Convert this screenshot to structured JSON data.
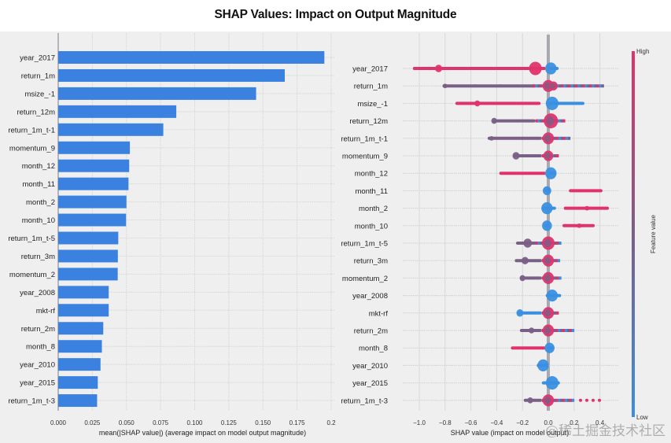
{
  "title": "SHAP Values: Impact on Output Magnitude",
  "watermark": "@稀土掘金技术社区",
  "colors": {
    "bar": "#3b82e0",
    "high": "#e0336c",
    "low": "#3a8fe0",
    "mid": "#7a5f86",
    "grid": "#d8d8d8",
    "panel_bg": "#efefef",
    "zero_line": "#a9a9b0"
  },
  "chart_data": [
    {
      "type": "bar",
      "orientation": "horizontal",
      "title": "",
      "xlabel": "mean(|SHAP value|) (average impact on model output magnitude)",
      "ylabel": "",
      "xlim": [
        0.0,
        0.2
      ],
      "xticks": [
        "0.000",
        "0.025",
        "0.050",
        "0.075",
        "0.100",
        "0.125",
        "0.150",
        "0.175",
        "0.2"
      ],
      "xtick_values": [
        0.0,
        0.025,
        0.05,
        0.075,
        0.1,
        0.125,
        0.15,
        0.175,
        0.2
      ],
      "grid": true,
      "categories": [
        "year_2017",
        "return_1m",
        "msize_-1",
        "return_12m",
        "return_1m_t-1",
        "momentum_9",
        "month_12",
        "month_11",
        "month_2",
        "month_10",
        "return_1m_t-5",
        "return_3m",
        "momentum_2",
        "year_2008",
        "mkt-rf",
        "return_2m",
        "month_8",
        "year_2010",
        "year_2015",
        "return_1m_t-3"
      ],
      "values": [
        0.195,
        0.166,
        0.145,
        0.0865,
        0.077,
        0.0525,
        0.052,
        0.0515,
        0.05,
        0.0497,
        0.044,
        0.0437,
        0.0436,
        0.037,
        0.037,
        0.033,
        0.032,
        0.031,
        0.029,
        0.0285
      ]
    },
    {
      "type": "scatter",
      "subtype": "beeswarm",
      "title": "",
      "xlabel": "SHAP value (impact on model output)",
      "ylabel": "",
      "xlim": [
        -1.1,
        0.6
      ],
      "xticks": [
        "−1.0",
        "−0.8",
        "−0.6",
        "−0.4",
        "−0.2",
        "0.0",
        "0.2",
        "0.4"
      ],
      "xtick_values": [
        -1.0,
        -0.8,
        -0.6,
        -0.4,
        -0.2,
        0.0,
        0.2,
        0.4
      ],
      "grid": true,
      "colorbar": {
        "label": "Feature value",
        "high_label": "High",
        "low_label": "Low",
        "placement": "right"
      },
      "features": [
        {
          "name": "year_2017",
          "segments": [
            {
              "from": -1.05,
              "to": -0.02,
              "color": "high",
              "clusters": [
                [
                  -0.85,
                  5
                ],
                [
                  -0.1,
                  9
                ]
              ]
            },
            {
              "from": 0.0,
              "to": 0.08,
              "color": "low",
              "clusters": [
                [
                  0.02,
                  8
                ]
              ]
            }
          ]
        },
        {
          "name": "return_1m",
          "segments": [
            {
              "from": -0.82,
              "to": -0.1,
              "color": "mid",
              "clusters": [
                [
                  -0.8,
                  3
                ],
                [
                  -0.57,
                  2
                ],
                [
                  -0.37,
                  2
                ]
              ]
            },
            {
              "from": -0.12,
              "to": 0.43,
              "color": "mixed",
              "clusters": [
                [
                  0.0,
                  8
                ],
                [
                  0.04,
                  6
                ]
              ]
            }
          ]
        },
        {
          "name": "msize_-1",
          "segments": [
            {
              "from": -0.72,
              "to": -0.06,
              "color": "high",
              "clusters": [
                [
                  -0.55,
                  4
                ],
                [
                  -0.2,
                  2
                ]
              ]
            },
            {
              "from": 0.0,
              "to": 0.28,
              "color": "low",
              "clusters": [
                [
                  0.03,
                  9
                ]
              ]
            }
          ]
        },
        {
          "name": "return_12m",
          "segments": [
            {
              "from": -0.43,
              "to": -0.1,
              "color": "mid",
              "clusters": [
                [
                  -0.42,
                  4
                ],
                [
                  -0.2,
                  2
                ]
              ]
            },
            {
              "from": -0.1,
              "to": 0.13,
              "color": "mixed",
              "clusters": [
                [
                  0.02,
                  10
                ]
              ]
            }
          ]
        },
        {
          "name": "return_1m_t-1",
          "segments": [
            {
              "from": -0.47,
              "to": -0.05,
              "color": "mid",
              "clusters": [
                [
                  -0.44,
                  3
                ],
                [
                  -0.2,
                  2
                ]
              ]
            },
            {
              "from": -0.05,
              "to": 0.17,
              "color": "mixed",
              "clusters": [
                [
                  0.0,
                  8
                ]
              ]
            }
          ]
        },
        {
          "name": "momentum_9",
          "segments": [
            {
              "from": -0.27,
              "to": -0.05,
              "color": "mid",
              "clusters": [
                [
                  -0.25,
                  5
                ]
              ]
            },
            {
              "from": -0.05,
              "to": 0.08,
              "color": "mixed",
              "clusters": [
                [
                  0.0,
                  7
                ]
              ]
            }
          ]
        },
        {
          "name": "month_12",
          "segments": [
            {
              "from": -0.38,
              "to": -0.02,
              "color": "high",
              "clusters": [
                [
                  -0.3,
                  1
                ]
              ]
            },
            {
              "from": 0.0,
              "to": 0.06,
              "color": "low",
              "clusters": [
                [
                  0.02,
                  8
                ]
              ]
            }
          ]
        },
        {
          "name": "month_11",
          "segments": [
            {
              "from": -0.03,
              "to": 0.01,
              "color": "low",
              "clusters": [
                [
                  -0.01,
                  6
                ]
              ]
            },
            {
              "from": 0.16,
              "to": 0.42,
              "color": "high",
              "clusters": [
                [
                  0.25,
                  2
                ]
              ]
            }
          ]
        },
        {
          "name": "month_2",
          "segments": [
            {
              "from": -0.05,
              "to": 0.06,
              "color": "low",
              "clusters": [
                [
                  -0.01,
                  8
                ]
              ]
            },
            {
              "from": 0.12,
              "to": 0.47,
              "color": "high",
              "clusters": [
                [
                  0.3,
                  3
                ]
              ]
            }
          ]
        },
        {
          "name": "month_10",
          "segments": [
            {
              "from": -0.03,
              "to": 0.01,
              "color": "low",
              "clusters": [
                [
                  -0.01,
                  7
                ]
              ]
            },
            {
              "from": 0.11,
              "to": 0.36,
              "color": "high",
              "clusters": [
                [
                  0.24,
                  3
                ]
              ]
            }
          ]
        },
        {
          "name": "return_1m_t-5",
          "segments": [
            {
              "from": -0.25,
              "to": -0.05,
              "color": "mid",
              "clusters": [
                [
                  -0.16,
                  6
                ]
              ]
            },
            {
              "from": -0.1,
              "to": 0.1,
              "color": "mixed",
              "clusters": [
                [
                  0.0,
                  9
                ]
              ]
            }
          ]
        },
        {
          "name": "return_3m",
          "segments": [
            {
              "from": -0.26,
              "to": -0.05,
              "color": "mid",
              "clusters": [
                [
                  -0.18,
                  5
                ]
              ]
            },
            {
              "from": -0.05,
              "to": 0.09,
              "color": "mixed",
              "clusters": [
                [
                  0.0,
                  8
                ]
              ]
            }
          ]
        },
        {
          "name": "momentum_2",
          "segments": [
            {
              "from": -0.22,
              "to": -0.05,
              "color": "mid",
              "clusters": [
                [
                  -0.2,
                  4
                ]
              ]
            },
            {
              "from": -0.05,
              "to": 0.1,
              "color": "mixed",
              "clusters": [
                [
                  0.0,
                  8
                ]
              ]
            }
          ]
        },
        {
          "name": "year_2008",
          "segments": [
            {
              "from": -0.02,
              "to": 0.1,
              "color": "low",
              "clusters": [
                [
                  0.03,
                  8
                ]
              ]
            }
          ]
        },
        {
          "name": "mkt-rf",
          "segments": [
            {
              "from": -0.24,
              "to": -0.05,
              "color": "low",
              "clusters": [
                [
                  -0.22,
                  5
                ]
              ]
            },
            {
              "from": -0.05,
              "to": 0.08,
              "color": "mixed",
              "clusters": [
                [
                  0.0,
                  8
                ]
              ]
            }
          ]
        },
        {
          "name": "return_2m",
          "segments": [
            {
              "from": -0.22,
              "to": -0.05,
              "color": "mid",
              "clusters": [
                [
                  -0.13,
                  4
                ]
              ]
            },
            {
              "from": -0.05,
              "to": 0.2,
              "color": "mixed",
              "clusters": [
                [
                  0.0,
                  8
                ]
              ]
            }
          ]
        },
        {
          "name": "month_8",
          "segments": [
            {
              "from": -0.29,
              "to": -0.02,
              "color": "high",
              "clusters": []
            },
            {
              "from": -0.01,
              "to": 0.04,
              "color": "low",
              "clusters": [
                [
                  0.01,
                  7
                ]
              ]
            }
          ]
        },
        {
          "name": "year_2010",
          "segments": [
            {
              "from": -0.09,
              "to": 0.0,
              "color": "low",
              "clusters": [
                [
                  -0.04,
                  8
                ]
              ]
            }
          ]
        },
        {
          "name": "year_2015",
          "segments": [
            {
              "from": -0.05,
              "to": 0.09,
              "color": "low",
              "clusters": [
                [
                  0.03,
                  9
                ]
              ]
            }
          ]
        },
        {
          "name": "return_1m_t-3",
          "segments": [
            {
              "from": -0.19,
              "to": -0.05,
              "color": "mid",
              "clusters": [
                [
                  -0.14,
                  4
                ]
              ]
            },
            {
              "from": -0.05,
              "to": 0.2,
              "color": "mixed",
              "clusters": [
                [
                  0.0,
                  8
                ]
              ]
            },
            {
              "from": 0.25,
              "to": 0.4,
              "color": "high",
              "clusters": [],
              "dotted": true
            }
          ]
        }
      ]
    }
  ]
}
